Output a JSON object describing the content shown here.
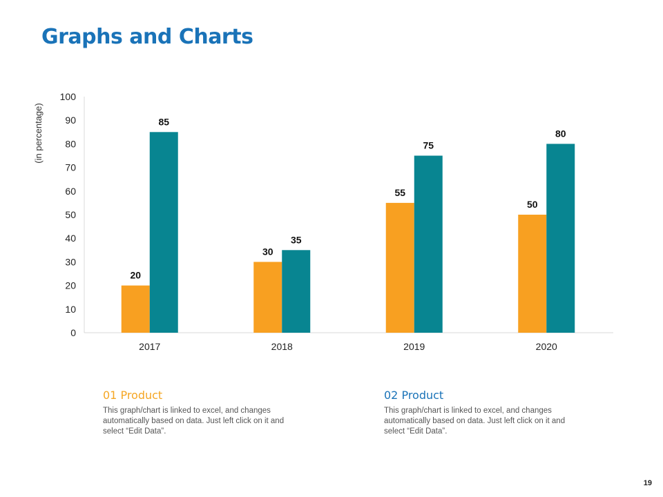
{
  "title": "Graphs and Charts",
  "chart_data": {
    "type": "bar",
    "categories": [
      "2017",
      "2018",
      "2019",
      "2020"
    ],
    "series": [
      {
        "name": "01 Product",
        "color": "#f8a021",
        "values": [
          20,
          30,
          55,
          50
        ]
      },
      {
        "name": "02 Product",
        "color": "#088591",
        "values": [
          85,
          35,
          75,
          80
        ]
      }
    ],
    "yticks": [
      "0",
      "10",
      "20",
      "30",
      "40",
      "50",
      "60",
      "70",
      "80",
      "90",
      "100"
    ],
    "ylim": [
      0,
      100
    ],
    "ylabel": "(in percentage)",
    "xlabel": ""
  },
  "legend": [
    {
      "title": "01 Product",
      "description": "This graph/chart is linked to excel, and changes automatically based on data. Just left click on it and select “Edit Data”."
    },
    {
      "title": "02 Product",
      "description": "This graph/chart is linked to excel, and changes automatically based on data. Just left click on it and select “Edit Data”."
    }
  ],
  "page_number": "19"
}
